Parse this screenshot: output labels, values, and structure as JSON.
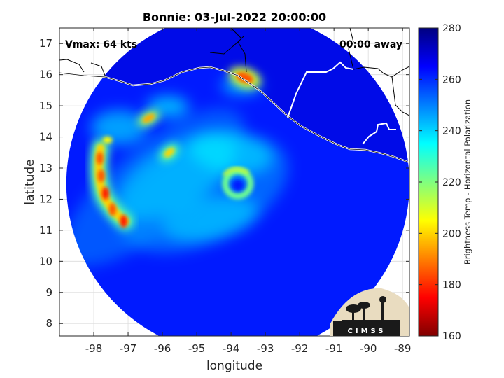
{
  "chart_data": {
    "type": "heatmap",
    "title": "Bonnie: 03-Jul-2022 20:00:00",
    "xlabel": "longitude",
    "ylabel": "latitude",
    "xlim": [
      -99,
      -88.8
    ],
    "ylim": [
      7.6,
      17.5
    ],
    "xticks": [
      -98,
      -97,
      -96,
      -95,
      -94,
      -93,
      -92,
      -91,
      -90,
      -89
    ],
    "yticks": [
      8,
      9,
      10,
      11,
      12,
      13,
      14,
      15,
      16,
      17
    ],
    "grid": true,
    "storm_center": {
      "lon": -93.8,
      "lat": 12.5
    },
    "swath_radius_deg": 5.0,
    "annotations": {
      "vmax": "Vmax: 64 kts",
      "time_away": "00:00 away"
    },
    "colorbar": {
      "label": "Brightness Temp - Horizontal Polarization",
      "range": [
        160,
        280
      ],
      "ticks": [
        160,
        180,
        200,
        220,
        240,
        260,
        280
      ],
      "colormap": "jet"
    },
    "features": [
      {
        "name": "eye",
        "lon": -93.8,
        "lat": 12.45,
        "value": 262
      },
      {
        "name": "eyewall",
        "lon": -93.8,
        "lat": 12.5,
        "value": 222
      },
      {
        "name": "western rainband",
        "lon": -97.7,
        "lat": 12.3,
        "value": 185
      },
      {
        "name": "rainband",
        "lon": -96.4,
        "lat": 14.6,
        "value": 195
      },
      {
        "name": "rainband",
        "lon": -97.6,
        "lat": 13.9,
        "value": 205
      },
      {
        "name": "inner rainband",
        "lon": -95.8,
        "lat": 13.5,
        "value": 200
      },
      {
        "name": "coastal convection",
        "lon": -93.6,
        "lat": 15.9,
        "value": 185
      },
      {
        "name": "background ocean",
        "value": 262
      },
      {
        "name": "land",
        "value": 270
      }
    ],
    "logo": "CIMSS"
  },
  "colors": {
    "ocean": "#0c46e6",
    "land": "#0a2fb4",
    "coastline": "#ffffff",
    "border": "#000000"
  }
}
